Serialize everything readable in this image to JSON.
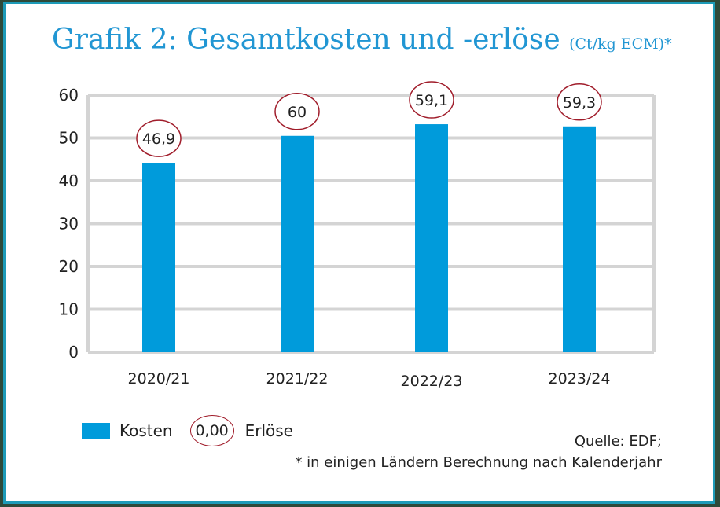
{
  "title": "Grafik 2: Gesamtkosten und -erlöse",
  "unit": "(Ct/kg ECM)*",
  "chart_data": {
    "type": "bar",
    "title": "Grafik 2: Gesamtkosten und -erlöse (Ct/kg ECM)*",
    "categories": [
      "2020/21",
      "2021/22",
      "2022/23",
      "2023/24"
    ],
    "series": [
      {
        "name": "Kosten",
        "values": [
          44.2,
          50.5,
          53.2,
          52.7
        ],
        "color": "#009bdb"
      },
      {
        "name": "Erlöse",
        "values": [
          46.9,
          60,
          59.1,
          59.3
        ],
        "labels": [
          "46,9",
          "60",
          "59,1",
          "59,3"
        ],
        "color": "#a01c2a"
      }
    ],
    "yticks": [
      "0",
      "10",
      "20",
      "30",
      "40",
      "50",
      "60"
    ],
    "ylim": [
      0,
      60
    ],
    "grid": true,
    "legend": "bottom-left"
  },
  "legend": {
    "kosten": "Kosten",
    "sample": "0,00",
    "erloese": "Erlöse"
  },
  "source": "Quelle: EDF;",
  "footnote": "* in einigen Ländern Berechnung nach Kalenderjahr"
}
